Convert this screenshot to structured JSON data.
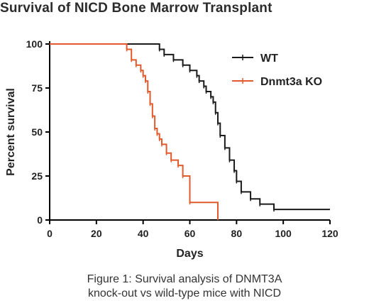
{
  "chart_data": {
    "type": "line",
    "step": true,
    "title": "Survival of NICD Bone Marrow Transplant",
    "xlabel": "Days",
    "ylabel": "Percent survival",
    "xlim": [
      0,
      120
    ],
    "ylim": [
      0,
      100
    ],
    "xticks": [
      0,
      20,
      40,
      60,
      80,
      100,
      120
    ],
    "yticks": [
      0,
      25,
      50,
      75,
      100
    ],
    "grid": false,
    "legend_position": "top-right",
    "series": [
      {
        "name": "WT",
        "color": "#1a1a1a",
        "marker": "tick",
        "x": [
          0,
          47,
          49,
          53,
          57,
          60,
          63,
          64,
          66,
          67,
          69,
          70,
          71,
          72,
          73,
          75,
          77,
          79,
          80,
          82,
          86,
          90,
          96,
          120
        ],
        "y": [
          100,
          97,
          94,
          91,
          88,
          85,
          82,
          79,
          76,
          73,
          70,
          67,
          61,
          55,
          48,
          41,
          34,
          28,
          22,
          16,
          12,
          9,
          6,
          6
        ]
      },
      {
        "name": "Dnmt3a KO",
        "color": "#e05a2b",
        "marker": "tick",
        "x": [
          0,
          33,
          35,
          37,
          39,
          40,
          41,
          42,
          43,
          44,
          45,
          46,
          47,
          48,
          50,
          52,
          55,
          57,
          60,
          72
        ],
        "y": [
          100,
          97,
          91,
          88,
          85,
          82,
          79,
          73,
          66,
          59,
          52,
          49,
          46,
          43,
          38,
          34,
          31,
          25,
          10,
          0
        ]
      }
    ]
  },
  "caption": {
    "line1": "Figure 1: Survival analysis of DNMT3A",
    "line2": "knock-out vs wild-type mice with NICD"
  }
}
